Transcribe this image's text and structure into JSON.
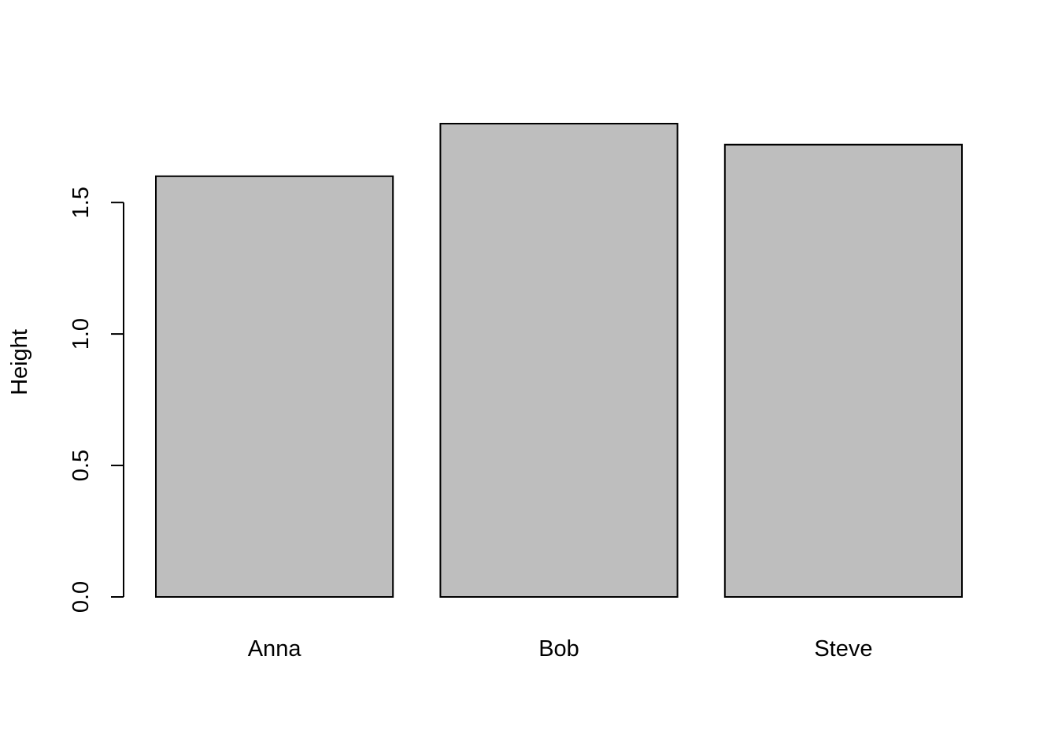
{
  "chart_data": {
    "type": "bar",
    "title": "",
    "xlabel": "",
    "ylabel": "Height",
    "categories": [
      "Anna",
      "Bob",
      "Steve"
    ],
    "values": [
      1.6,
      1.8,
      1.72
    ],
    "ylim": [
      0,
      1.8
    ],
    "yticks": [
      0.0,
      0.5,
      1.0,
      1.5
    ],
    "ytick_labels": [
      "0.0",
      "0.5",
      "1.0",
      "1.5"
    ],
    "bar_color": "#bebebe",
    "border_color": "#000000",
    "grid": false,
    "legend": "none"
  }
}
